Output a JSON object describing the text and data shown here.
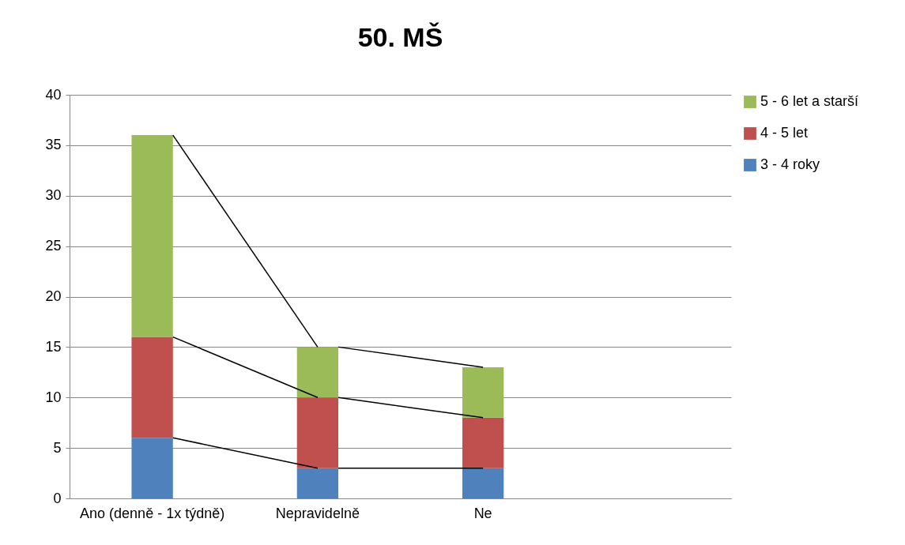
{
  "chart_data": {
    "type": "bar",
    "title": "50. MŠ",
    "stacked": true,
    "categories": [
      "Ano (denně - 1x týdně)",
      "Nepravidelně",
      "Ne",
      null
    ],
    "series": [
      {
        "name": "3 - 4 roky",
        "color": "#4f81bd",
        "values": [
          6,
          3,
          3,
          null
        ]
      },
      {
        "name": "4 - 5 let",
        "color": "#c0504d",
        "values": [
          10,
          7,
          5,
          null
        ]
      },
      {
        "name": "5 - 6 let a starší",
        "color": "#9bbb59",
        "values": [
          20,
          5,
          5,
          null
        ]
      }
    ],
    "ylim": [
      0,
      40
    ],
    "yticks": [
      0,
      5,
      10,
      15,
      20,
      25,
      30,
      35,
      40
    ],
    "grid": "y",
    "legend": "right"
  }
}
